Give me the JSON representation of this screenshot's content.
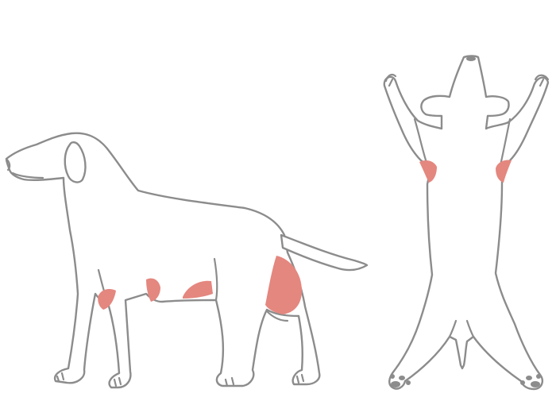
{
  "diagram": {
    "views": [
      "side-view",
      "ventral-view"
    ],
    "colors": {
      "outline": "#8c8c8c",
      "highlight": "#e4877f",
      "background": "#ffffff"
    },
    "highlighted_regions": [
      "side-elbow",
      "side-chest-lower",
      "side-belly",
      "side-thigh",
      "ventral-left-armpit",
      "ventral-right-armpit"
    ]
  }
}
